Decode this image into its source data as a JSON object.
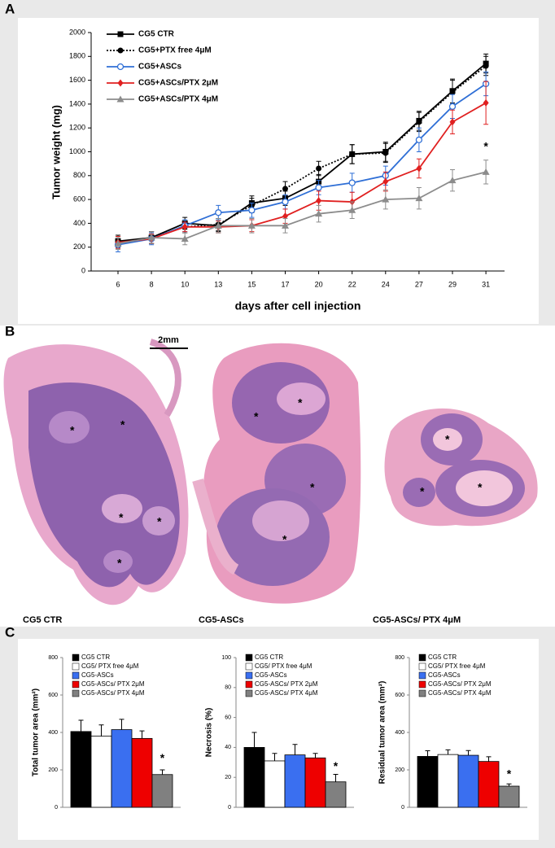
{
  "panels": [
    "A",
    "B",
    "C"
  ],
  "chart_data": [
    {
      "type": "line",
      "ylabel": "Tumor weight (mg)",
      "xlabel": "days after cell injection",
      "categories": [
        6,
        8,
        10,
        13,
        15,
        17,
        20,
        22,
        24,
        27,
        29,
        31
      ],
      "ylim": [
        0,
        2000
      ],
      "yticks": [
        0,
        200,
        400,
        600,
        800,
        1000,
        1200,
        1400,
        1600,
        1800,
        2000
      ],
      "legend": "top-left",
      "series": [
        {
          "name": "CG5 CTR",
          "color": "#000000",
          "marker": "square",
          "dash": false,
          "values": [
            250,
            280,
            400,
            380,
            570,
            610,
            750,
            980,
            1000,
            1260,
            1510,
            1740
          ],
          "errors": [
            50,
            50,
            50,
            50,
            60,
            60,
            60,
            80,
            80,
            80,
            100,
            80
          ]
        },
        {
          "name": "CG5+PTX free 4μM",
          "color": "#000000",
          "marker": "circle",
          "dash": true,
          "values": [
            240,
            280,
            370,
            390,
            550,
            690,
            860,
            980,
            990,
            1250,
            1500,
            1720
          ],
          "errors": [
            50,
            50,
            50,
            50,
            60,
            60,
            60,
            80,
            80,
            80,
            100,
            80
          ]
        },
        {
          "name": "CG5+ASCs",
          "color": "#2f6fd6",
          "marker": "open-circle",
          "dash": false,
          "values": [
            220,
            270,
            380,
            490,
            510,
            580,
            700,
            740,
            800,
            1100,
            1380,
            1570
          ],
          "errors": [
            60,
            50,
            50,
            60,
            60,
            60,
            60,
            80,
            80,
            100,
            100,
            100
          ]
        },
        {
          "name": "CG5+ASCs/PTX 2μM",
          "color": "#e02020",
          "marker": "diamond",
          "dash": false,
          "values": [
            240,
            270,
            370,
            370,
            380,
            460,
            590,
            580,
            750,
            860,
            1250,
            1410
          ],
          "errors": [
            50,
            40,
            40,
            50,
            50,
            60,
            80,
            80,
            80,
            80,
            100,
            180
          ]
        },
        {
          "name": "CG5+ASCs/PTX 4μM",
          "color": "#8c8c8c",
          "marker": "triangle",
          "dash": false,
          "values": [
            230,
            280,
            270,
            380,
            380,
            380,
            480,
            510,
            600,
            610,
            760,
            830
          ],
          "errors": [
            50,
            50,
            50,
            60,
            60,
            60,
            70,
            70,
            80,
            90,
            90,
            100
          ]
        }
      ],
      "annotations": [
        {
          "text": "*",
          "category": 31,
          "y": 1040
        }
      ]
    },
    {
      "type": "bar",
      "ylabel": "Total tumor area (mm²)",
      "ylim": [
        0,
        800
      ],
      "yticks": [
        0,
        200,
        400,
        600,
        800
      ],
      "series": [
        {
          "name": "CG5 CTR",
          "color": "#000000",
          "values": [
            405
          ],
          "errors": [
            60
          ]
        },
        {
          "name": "CG5/ PTX free 4μM",
          "color": "#ffffff",
          "values": [
            380
          ],
          "errors": [
            60
          ]
        },
        {
          "name": "CG5-ASCs",
          "color": "#3a6ff0",
          "values": [
            415
          ],
          "errors": [
            55
          ]
        },
        {
          "name": "CG5-ASCs/ PTX 2μM",
          "color": "#ee0000",
          "values": [
            368
          ],
          "errors": [
            40
          ]
        },
        {
          "name": "CG5-ASCs/ PTX 4μM",
          "color": "#808080",
          "values": [
            175
          ],
          "errors": [
            25
          ]
        }
      ],
      "annotations": [
        {
          "text": "*",
          "series": 4,
          "y": 260
        }
      ]
    },
    {
      "type": "bar",
      "ylabel": "Necrosis (%)",
      "ylim": [
        0,
        100
      ],
      "yticks": [
        0,
        20,
        40,
        60,
        80,
        100
      ],
      "series": [
        {
          "name": "CG5 CTR",
          "color": "#000000",
          "values": [
            40
          ],
          "errors": [
            10
          ]
        },
        {
          "name": "CG5/ PTX free 4μM",
          "color": "#ffffff",
          "values": [
            31
          ],
          "errors": [
            5
          ]
        },
        {
          "name": "CG5-ASCs",
          "color": "#3a6ff0",
          "values": [
            35
          ],
          "errors": [
            7
          ]
        },
        {
          "name": "CG5-ASCs/ PTX 2μM",
          "color": "#ee0000",
          "values": [
            33
          ],
          "errors": [
            3
          ]
        },
        {
          "name": "CG5-ASCs/ PTX 4μM",
          "color": "#808080",
          "values": [
            17
          ],
          "errors": [
            5
          ]
        }
      ],
      "annotations": [
        {
          "text": "*",
          "series": 4,
          "y": 27
        }
      ]
    },
    {
      "type": "bar",
      "ylabel": "Residual tumor area (mm²)",
      "ylim": [
        0,
        800
      ],
      "yticks": [
        0,
        200,
        400,
        600,
        800
      ],
      "series": [
        {
          "name": "CG5 CTR",
          "color": "#000000",
          "values": [
            272
          ],
          "errors": [
            30
          ]
        },
        {
          "name": "CG5/ PTX free 4μM",
          "color": "#ffffff",
          "values": [
            282
          ],
          "errors": [
            25
          ]
        },
        {
          "name": "CG5-ASCs",
          "color": "#3a6ff0",
          "values": [
            278
          ],
          "errors": [
            25
          ]
        },
        {
          "name": "CG5-ASCs/ PTX 2μM",
          "color": "#ee0000",
          "values": [
            245
          ],
          "errors": [
            25
          ]
        },
        {
          "name": "CG5-ASCs/ PTX 4μM",
          "color": "#808080",
          "values": [
            113
          ],
          "errors": [
            12
          ]
        }
      ],
      "annotations": [
        {
          "text": "*",
          "series": 4,
          "y": 175
        }
      ]
    }
  ],
  "histology": {
    "scale_bar": "2mm",
    "images": [
      {
        "label": "CG5 CTR",
        "marks": [
          "*",
          "*",
          "*",
          "*",
          "*"
        ]
      },
      {
        "label": "CG5-ASCs",
        "marks": [
          "*",
          "*",
          "*",
          "*"
        ]
      },
      {
        "label": "CG5-ASCs/ PTX 4μM",
        "marks": [
          "*",
          "*",
          "*"
        ]
      }
    ]
  }
}
